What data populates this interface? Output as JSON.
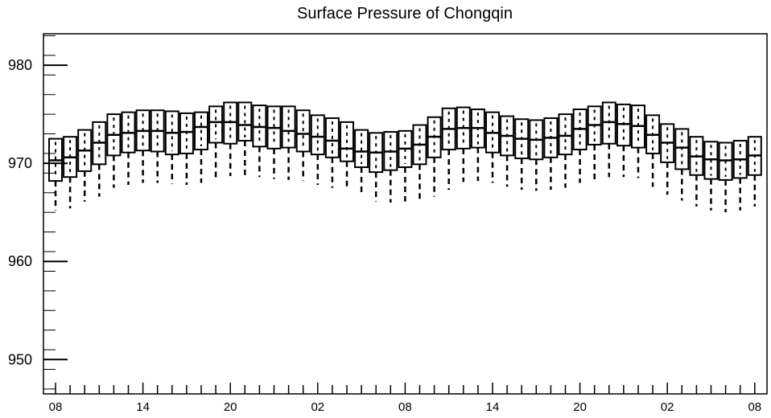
{
  "chart_data": {
    "type": "box",
    "title": "Surface Pressure of Chongqin",
    "xlabel": "",
    "ylabel": "",
    "ylim": [
      946.5,
      983.2
    ],
    "yticks": [
      950,
      960,
      970,
      980
    ],
    "ytick_labels": [
      "950",
      "960",
      "970",
      "980"
    ],
    "xtick_labels": [
      "08",
      "14",
      "20",
      "02",
      "08",
      "14",
      "20",
      "02",
      "08"
    ],
    "xtick_hours": [
      0,
      6,
      12,
      18,
      24,
      30,
      36,
      42,
      48
    ],
    "x_unit": "hour",
    "grid": false,
    "legend": "none",
    "series": [
      {
        "hours": [
          0,
          1,
          2,
          3,
          4,
          5,
          6,
          7,
          8,
          9,
          10,
          11,
          12,
          13,
          14,
          15,
          16,
          17,
          18,
          19,
          20,
          21,
          22,
          23,
          24,
          25,
          26,
          27,
          28,
          29,
          30,
          31,
          32,
          33,
          34,
          35,
          36,
          37,
          38,
          39,
          40,
          41,
          42,
          43,
          44,
          45,
          46,
          47,
          48
        ],
        "whisker_low": [
          965.2,
          965.4,
          966.1,
          966.6,
          967.5,
          967.8,
          968.0,
          968.0,
          967.9,
          967.8,
          968.0,
          968.4,
          968.7,
          968.8,
          968.6,
          968.4,
          968.3,
          968.2,
          967.8,
          967.5,
          967.3,
          966.7,
          966.1,
          966.0,
          966.1,
          966.3,
          966.6,
          967.3,
          968.1,
          968.2,
          968.0,
          967.6,
          967.3,
          967.2,
          967.3,
          967.5,
          968.0,
          968.3,
          968.6,
          968.6,
          968.5,
          967.6,
          966.8,
          966.2,
          965.6,
          965.2,
          965.0,
          965.2,
          965.6
        ],
        "q1": [
          968.2,
          968.6,
          969.2,
          969.9,
          970.8,
          971.1,
          971.3,
          971.2,
          970.9,
          971.0,
          971.4,
          972.1,
          972.0,
          972.3,
          971.7,
          971.5,
          971.6,
          971.2,
          970.9,
          970.6,
          970.2,
          969.6,
          969.1,
          969.3,
          969.6,
          969.9,
          970.6,
          971.4,
          971.5,
          971.6,
          971.1,
          970.8,
          970.5,
          970.4,
          970.6,
          970.9,
          971.4,
          971.9,
          972.0,
          971.8,
          971.6,
          971.0,
          970.1,
          969.4,
          968.8,
          968.4,
          968.3,
          968.5,
          968.8
        ],
        "median": [
          970.3,
          970.6,
          971.3,
          972.1,
          972.9,
          973.1,
          973.3,
          973.3,
          973.1,
          973.2,
          973.7,
          974.2,
          974.2,
          973.9,
          973.7,
          973.6,
          973.3,
          973.0,
          972.7,
          972.3,
          971.5,
          971.2,
          971.1,
          971.2,
          971.5,
          971.9,
          972.7,
          973.5,
          973.6,
          973.6,
          973.1,
          972.8,
          972.5,
          972.4,
          972.6,
          972.8,
          973.5,
          973.9,
          974.2,
          974.0,
          973.8,
          972.9,
          972.1,
          971.6,
          970.7,
          970.4,
          970.3,
          970.4,
          970.8
        ],
        "q3": [
          972.5,
          972.7,
          973.4,
          974.2,
          975.0,
          975.2,
          975.4,
          975.4,
          975.3,
          975.1,
          975.2,
          975.8,
          976.2,
          976.2,
          975.9,
          975.8,
          975.8,
          975.4,
          974.9,
          974.6,
          974.2,
          973.4,
          973.1,
          973.2,
          973.3,
          973.9,
          974.7,
          975.6,
          975.7,
          975.5,
          975.2,
          974.8,
          974.5,
          974.4,
          974.6,
          975.0,
          975.5,
          975.8,
          976.2,
          976.0,
          975.9,
          974.9,
          974.0,
          973.5,
          972.7,
          972.2,
          972.1,
          972.3,
          972.7
        ]
      }
    ]
  }
}
